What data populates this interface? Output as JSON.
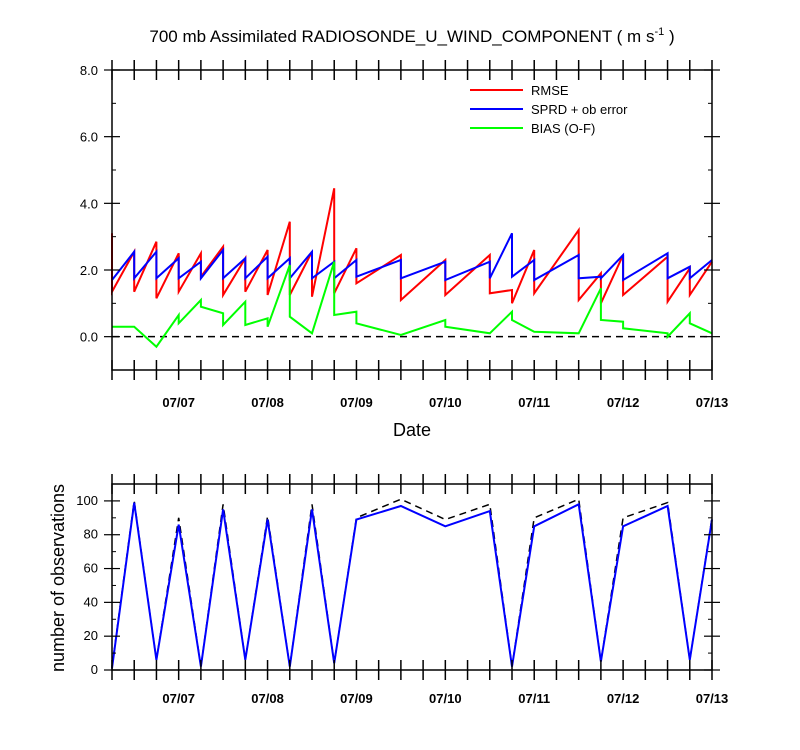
{
  "chart_data": [
    {
      "type": "line",
      "title": "700 mb Assimilated RADIOSONDE_U_WIND_COMPONENT ( m s",
      "title_superscript": "-1",
      "title_suffix": " )",
      "xlabel": "Date",
      "ylabel": "",
      "xlim": [
        0,
        6.75
      ],
      "ylim": [
        -1,
        8
      ],
      "yticks": [
        0,
        2,
        4,
        6,
        8
      ],
      "ytick_labels": [
        "0.0",
        "2.0",
        "4.0",
        "6.0",
        "8.0"
      ],
      "xticks": [
        0.75,
        1.75,
        2.75,
        3.75,
        4.75,
        5.75,
        6.75
      ],
      "xtick_labels": [
        "07/07",
        "07/08",
        "07/09",
        "07/10",
        "07/11",
        "07/12",
        "07/13"
      ],
      "reference_line": 0,
      "legend_position": "top-right",
      "series": [
        {
          "name": "RMSE",
          "color": "#ff0000",
          "points": [
            [
              0.0,
              3.1
            ],
            [
              0.0,
              1.35
            ],
            [
              0.25,
              2.55
            ],
            [
              0.25,
              1.35
            ],
            [
              0.5,
              2.85
            ],
            [
              0.5,
              1.15
            ],
            [
              0.75,
              2.5
            ],
            [
              0.75,
              1.35
            ],
            [
              1.0,
              2.5
            ],
            [
              1.0,
              1.8
            ],
            [
              1.25,
              2.7
            ],
            [
              1.25,
              1.25
            ],
            [
              1.5,
              2.35
            ],
            [
              1.5,
              1.35
            ],
            [
              1.75,
              2.6
            ],
            [
              1.75,
              1.25
            ],
            [
              2.0,
              3.45
            ],
            [
              2.0,
              1.25
            ],
            [
              2.25,
              2.55
            ],
            [
              2.25,
              1.2
            ],
            [
              2.5,
              4.45
            ],
            [
              2.5,
              1.3
            ],
            [
              2.75,
              2.65
            ],
            [
              2.75,
              1.6
            ],
            [
              3.25,
              2.45
            ],
            [
              3.25,
              1.1
            ],
            [
              3.75,
              2.3
            ],
            [
              3.75,
              1.25
            ],
            [
              4.25,
              2.45
            ],
            [
              4.25,
              1.3
            ],
            [
              4.5,
              1.4
            ],
            [
              4.5,
              1.0
            ],
            [
              4.75,
              2.6
            ],
            [
              4.75,
              1.3
            ],
            [
              5.25,
              3.2
            ],
            [
              5.25,
              1.1
            ],
            [
              5.5,
              1.9
            ],
            [
              5.5,
              1.0
            ],
            [
              5.75,
              2.45
            ],
            [
              5.75,
              1.25
            ],
            [
              6.25,
              2.4
            ],
            [
              6.25,
              1.05
            ],
            [
              6.5,
              2.05
            ],
            [
              6.5,
              1.25
            ],
            [
              6.75,
              2.25
            ]
          ]
        },
        {
          "name": "SPRD + ob error",
          "color": "#0000ff",
          "points": [
            [
              0.0,
              1.7
            ],
            [
              0.25,
              2.55
            ],
            [
              0.25,
              1.75
            ],
            [
              0.5,
              2.55
            ],
            [
              0.5,
              1.75
            ],
            [
              0.75,
              2.35
            ],
            [
              0.75,
              1.75
            ],
            [
              1.0,
              2.25
            ],
            [
              1.0,
              1.75
            ],
            [
              1.25,
              2.6
            ],
            [
              1.25,
              1.75
            ],
            [
              1.5,
              2.35
            ],
            [
              1.5,
              1.75
            ],
            [
              1.75,
              2.4
            ],
            [
              1.75,
              1.75
            ],
            [
              2.0,
              2.35
            ],
            [
              2.0,
              1.75
            ],
            [
              2.25,
              2.55
            ],
            [
              2.25,
              1.75
            ],
            [
              2.5,
              2.25
            ],
            [
              2.5,
              1.75
            ],
            [
              2.75,
              2.3
            ],
            [
              2.75,
              1.8
            ],
            [
              3.25,
              2.3
            ],
            [
              3.25,
              1.75
            ],
            [
              3.75,
              2.25
            ],
            [
              3.75,
              1.7
            ],
            [
              4.25,
              2.25
            ],
            [
              4.25,
              1.75
            ],
            [
              4.5,
              3.1
            ],
            [
              4.5,
              1.8
            ],
            [
              4.75,
              2.3
            ],
            [
              4.75,
              1.7
            ],
            [
              5.25,
              2.45
            ],
            [
              5.25,
              1.75
            ],
            [
              5.5,
              1.8
            ],
            [
              5.5,
              1.75
            ],
            [
              5.75,
              2.45
            ],
            [
              5.75,
              1.7
            ],
            [
              6.25,
              2.5
            ],
            [
              6.25,
              1.75
            ],
            [
              6.5,
              2.1
            ],
            [
              6.5,
              1.75
            ],
            [
              6.75,
              2.3
            ]
          ]
        },
        {
          "name": "BIAS (O-F)",
          "color": "#00ff00",
          "points": [
            [
              0.0,
              0.3
            ],
            [
              0.25,
              0.3
            ],
            [
              0.5,
              -0.3
            ],
            [
              0.75,
              0.65
            ],
            [
              0.75,
              0.4
            ],
            [
              1.0,
              1.1
            ],
            [
              1.0,
              0.9
            ],
            [
              1.25,
              0.7
            ],
            [
              1.25,
              0.35
            ],
            [
              1.5,
              1.05
            ],
            [
              1.5,
              0.35
            ],
            [
              1.75,
              0.55
            ],
            [
              1.75,
              0.3
            ],
            [
              2.0,
              2.15
            ],
            [
              2.0,
              0.6
            ],
            [
              2.25,
              0.1
            ],
            [
              2.5,
              2.25
            ],
            [
              2.5,
              0.65
            ],
            [
              2.75,
              0.75
            ],
            [
              2.75,
              0.4
            ],
            [
              3.25,
              0.05
            ],
            [
              3.75,
              0.5
            ],
            [
              3.75,
              0.3
            ],
            [
              4.25,
              0.1
            ],
            [
              4.5,
              0.75
            ],
            [
              4.5,
              0.5
            ],
            [
              4.75,
              0.15
            ],
            [
              5.25,
              0.1
            ],
            [
              5.5,
              1.45
            ],
            [
              5.5,
              0.5
            ],
            [
              5.75,
              0.45
            ],
            [
              5.75,
              0.25
            ],
            [
              6.25,
              0.1
            ],
            [
              6.25,
              0.0
            ],
            [
              6.5,
              0.7
            ],
            [
              6.5,
              0.4
            ],
            [
              6.75,
              0.1
            ]
          ]
        }
      ]
    },
    {
      "type": "line",
      "ylabel": "number of observations",
      "xlim": [
        0,
        6.75
      ],
      "ylim": [
        0,
        110
      ],
      "yticks": [
        0,
        20,
        40,
        60,
        80,
        100
      ],
      "ytick_labels": [
        "0",
        "20",
        "40",
        "60",
        "80",
        "100"
      ],
      "xticks": [
        0.75,
        1.75,
        2.75,
        3.75,
        4.75,
        5.75,
        6.75
      ],
      "xtick_labels": [
        "07/07",
        "07/08",
        "07/09",
        "07/10",
        "07/11",
        "07/12",
        "07/13"
      ],
      "series": [
        {
          "style": "dashed",
          "color": "#000000",
          "x": [
            0.0,
            0.25,
            0.5,
            0.75,
            1.0,
            1.25,
            1.5,
            1.75,
            2.0,
            2.25,
            2.5,
            2.75,
            3.25,
            3.75,
            4.25,
            4.5,
            4.75,
            5.25,
            5.5,
            5.75,
            6.25,
            6.5,
            6.75
          ],
          "values": [
            2,
            100,
            6,
            90,
            2,
            98,
            6,
            91,
            2,
            98,
            4,
            90,
            101,
            89,
            98,
            2,
            90,
            101,
            5,
            90,
            99,
            6,
            90
          ]
        },
        {
          "style": "solid",
          "color": "#0000ff",
          "x": [
            0.0,
            0.25,
            0.5,
            0.75,
            1.0,
            1.25,
            1.5,
            1.75,
            2.0,
            2.25,
            2.5,
            2.75,
            3.25,
            3.75,
            4.25,
            4.5,
            4.75,
            5.25,
            5.5,
            5.75,
            6.25,
            6.5,
            6.75
          ],
          "values": [
            1,
            99,
            6,
            86,
            2,
            95,
            6,
            89,
            2,
            95,
            4,
            89,
            97,
            85,
            94,
            2,
            85,
            98,
            5,
            85,
            97,
            6,
            89
          ]
        }
      ]
    }
  ]
}
